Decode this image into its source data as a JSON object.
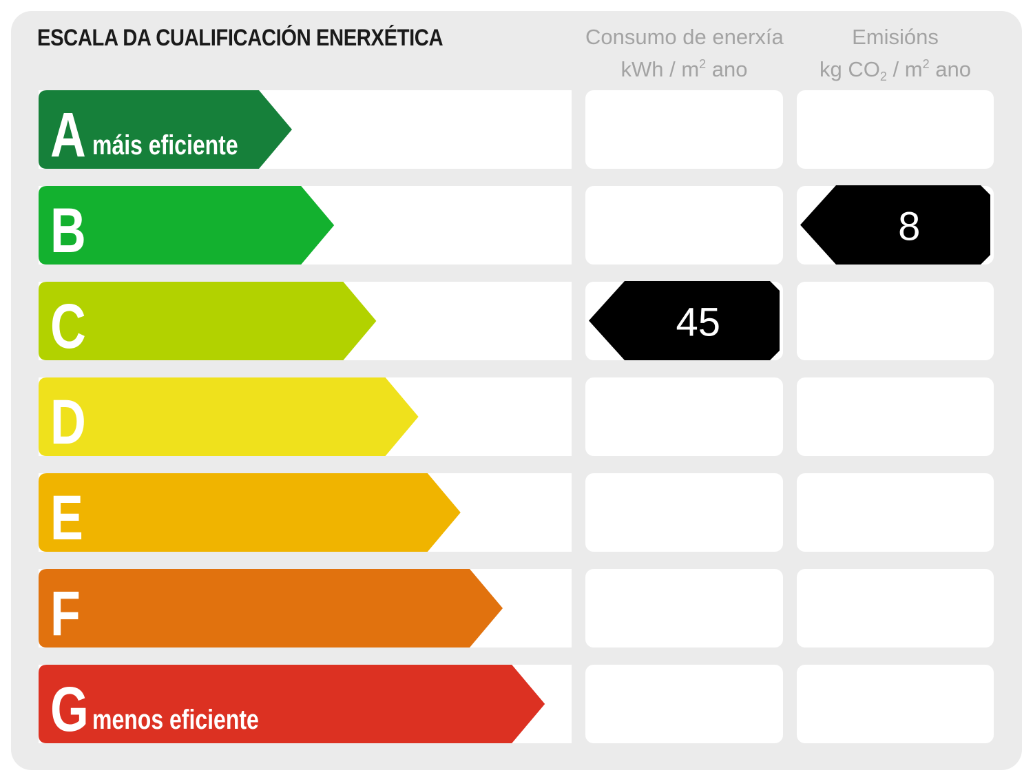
{
  "title": "ESCALA DA CUALIFICACIÓN ENERXÉTICA",
  "columns": {
    "consumo": {
      "line1": "Consumo de enerxía",
      "line2_pre": "kWh / m",
      "line2_sup": "2",
      "line2_post": " ano"
    },
    "emisions": {
      "line1": "Emisións",
      "line2_pre": "kg CO",
      "line2_sub": "2",
      "line2_mid": " / m",
      "line2_sup": "2",
      "line2_post": " ano"
    }
  },
  "chart_data": {
    "type": "bar",
    "title": "ESCALA DA CUALIFICACIÓN ENERXÉTICA",
    "categories": [
      "A",
      "B",
      "C",
      "D",
      "E",
      "F",
      "G"
    ],
    "bands": [
      {
        "letter": "A",
        "sublabel": "máis eficiente",
        "color": "#16803a"
      },
      {
        "letter": "B",
        "sublabel": "",
        "color": "#13b12f"
      },
      {
        "letter": "C",
        "sublabel": "",
        "color": "#b2d200"
      },
      {
        "letter": "D",
        "sublabel": "",
        "color": "#efe11c"
      },
      {
        "letter": "E",
        "sublabel": "",
        "color": "#f0b400"
      },
      {
        "letter": "F",
        "sublabel": "",
        "color": "#e1720e"
      },
      {
        "letter": "G",
        "sublabel": "menos eficiente",
        "color": "#dc3122"
      }
    ],
    "ratings": [
      {
        "column": "Consumo de enerxía",
        "unit": "kWh / m2 ano",
        "class": "C",
        "value": 45
      },
      {
        "column": "Emisións",
        "unit": "kg CO2 / m2 ano",
        "class": "B",
        "value": 8
      }
    ],
    "marker_color": "#000000"
  }
}
